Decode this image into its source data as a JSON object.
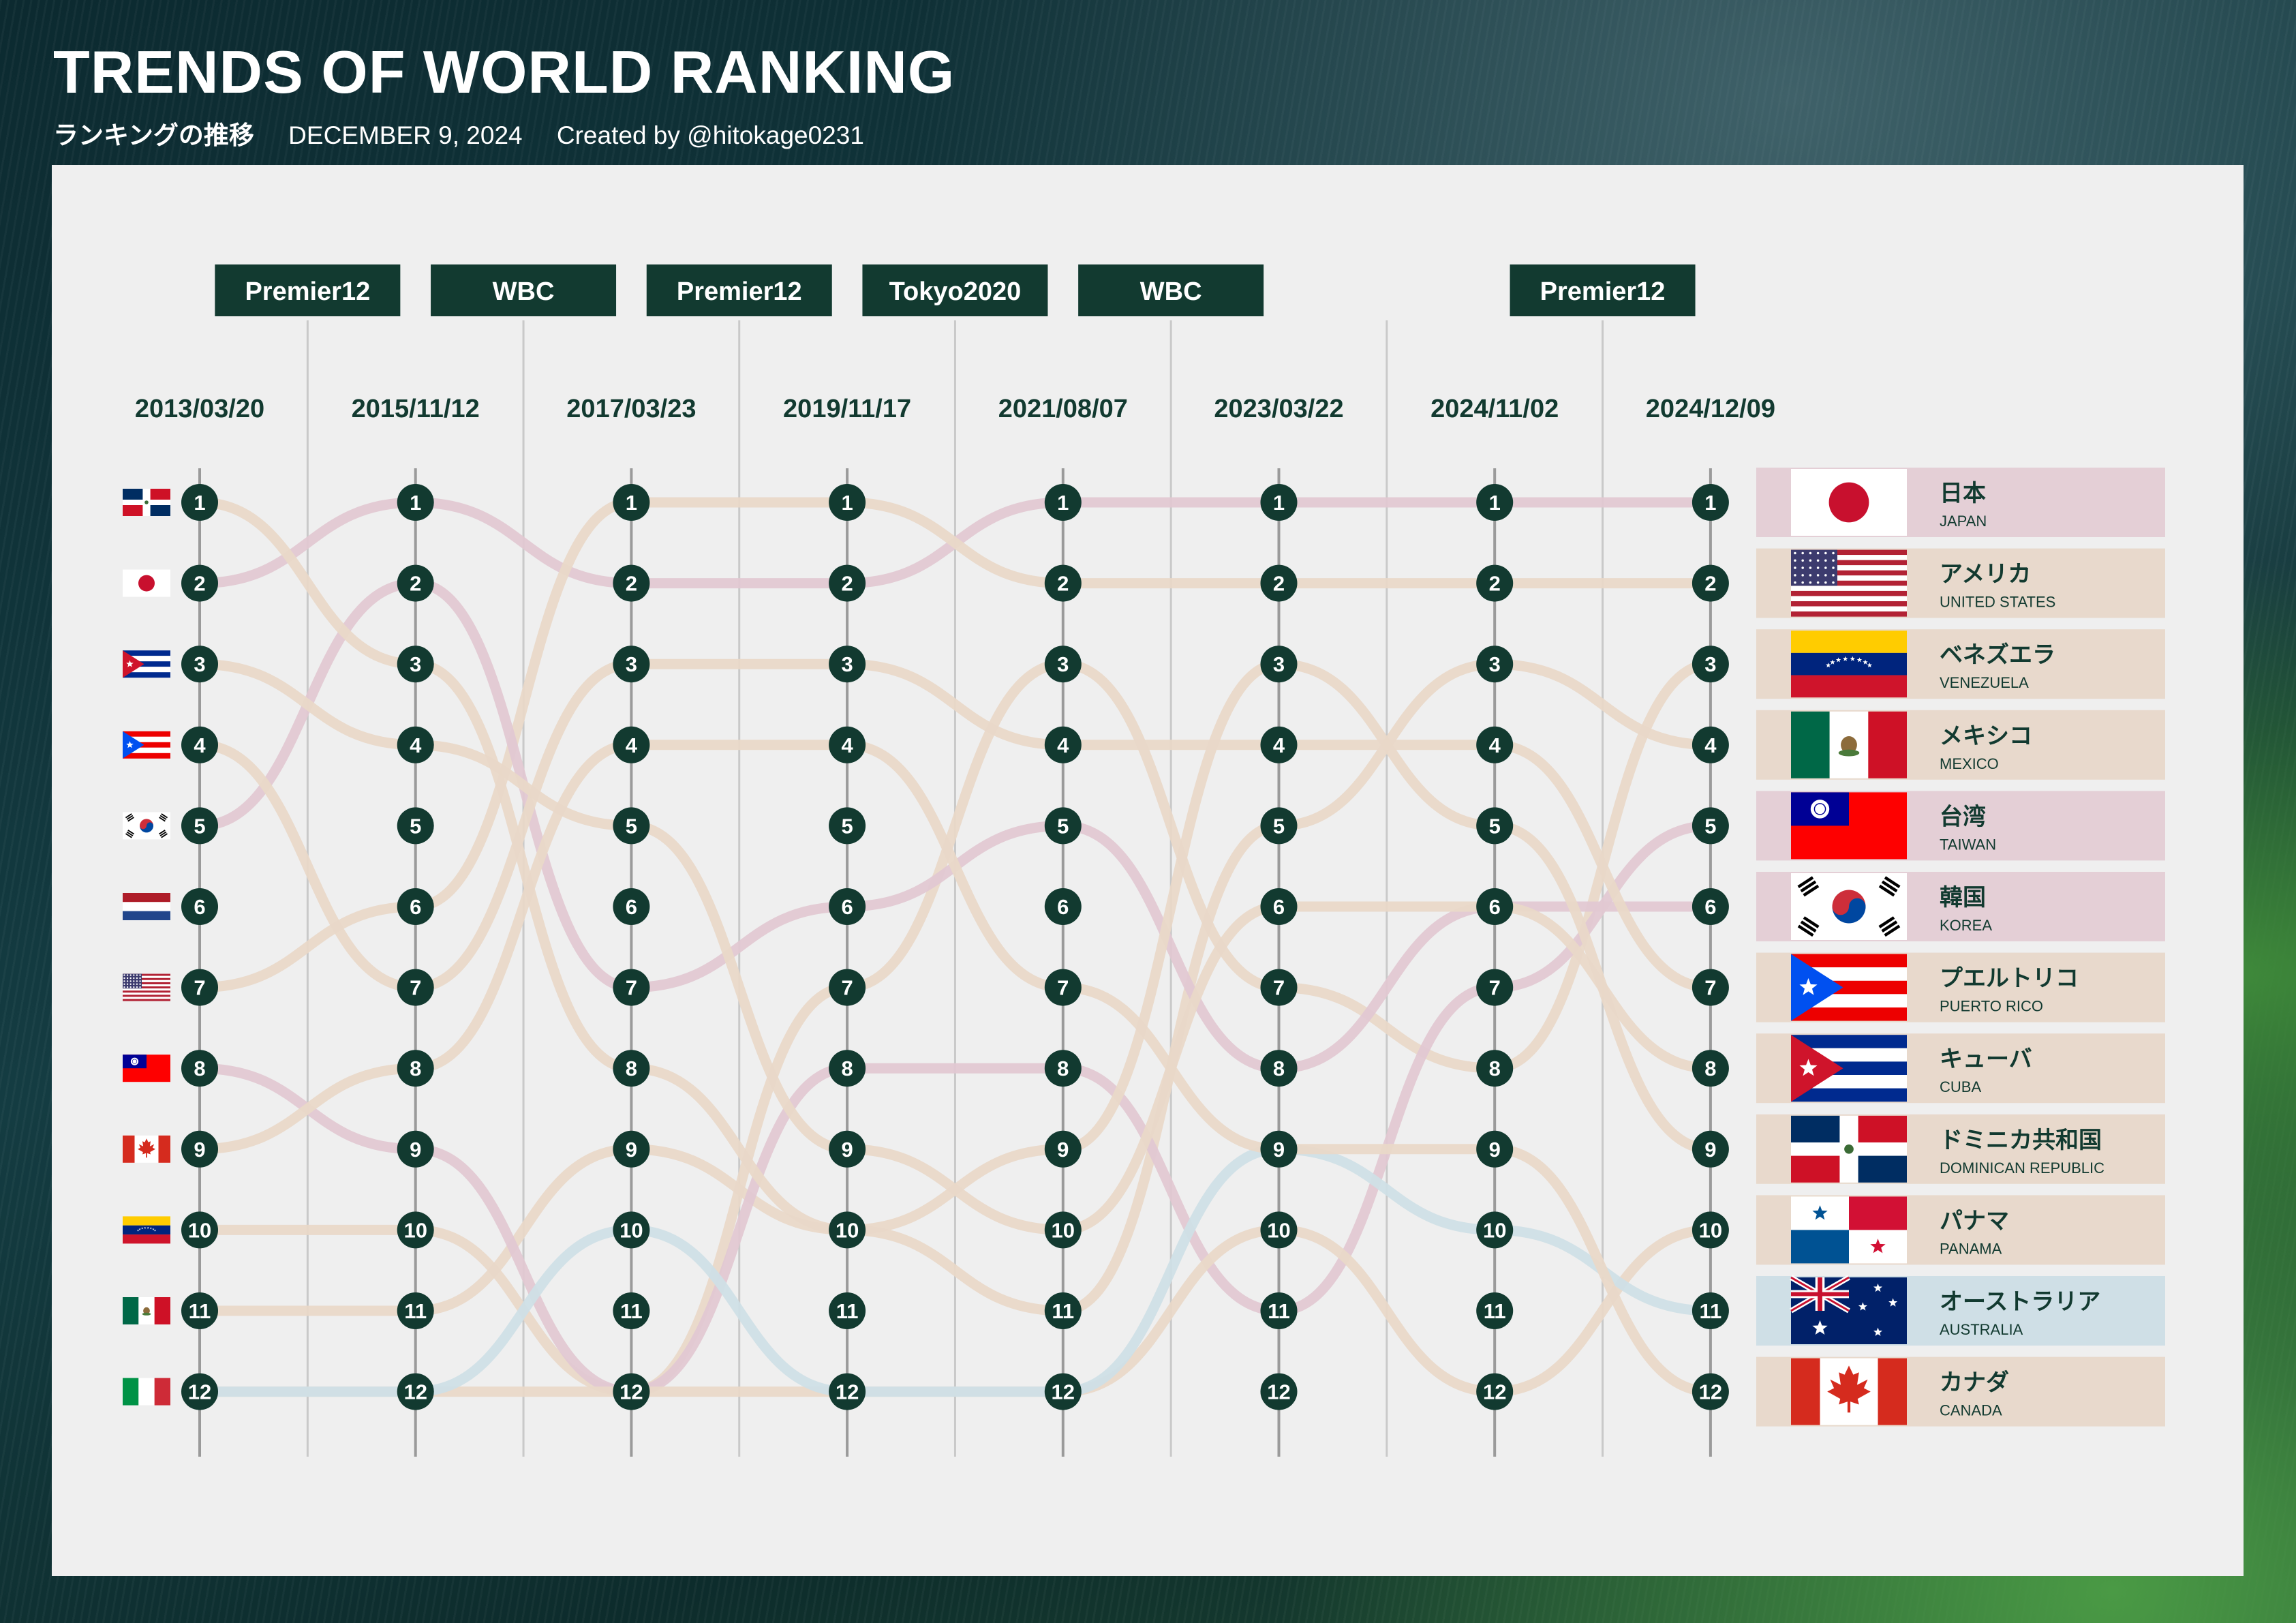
{
  "header": {
    "title": "TRENDS OF WORLD RANKING",
    "subtitle_jp": "ランキングの推移",
    "date": "DECEMBER 9, 2024",
    "credit": "Created by @hitokage0231"
  },
  "colors": {
    "panel_bg": "#efefef",
    "dark_green": "#123a30",
    "pink_line": "#e2c8d2",
    "tan_line": "#e9d8c8",
    "blue_line": "#cfdfe6",
    "pink_card": "#e4cfd6",
    "tan_card": "#e8d9cc",
    "blue_card": "#cfdfe6"
  },
  "chart_data": {
    "type": "bump",
    "x": [
      "2013/03/20",
      "2015/11/12",
      "2017/03/23",
      "2019/11/17",
      "2021/08/07",
      "2023/03/22",
      "2024/11/02",
      "2024/12/09"
    ],
    "ranks": [
      1,
      2,
      3,
      4,
      5,
      6,
      7,
      8,
      9,
      10,
      11,
      12
    ],
    "events": [
      {
        "label": "Premier12",
        "after_date": "2015/11/12"
      },
      {
        "label": "WBC",
        "after_date": "2017/03/23"
      },
      {
        "label": "Premier12",
        "after_date": "2019/11/17"
      },
      {
        "label": "Tokyo2020",
        "after_date": "2021/08/07"
      },
      {
        "label": "WBC",
        "after_date": "2023/03/22"
      },
      {
        "label": "Premier12",
        "after_date": "2024/12/09"
      }
    ],
    "initial_order": [
      "dominican",
      "japan",
      "cuba",
      "puerto_rico",
      "korea",
      "netherlands",
      "usa",
      "taiwan",
      "canada",
      "venezuela",
      "mexico",
      "italy"
    ],
    "series": [
      {
        "id": "japan",
        "name": "日本",
        "name_en": "JAPAN",
        "color": "pink",
        "ranks": [
          2,
          1,
          2,
          2,
          1,
          1,
          1,
          1
        ]
      },
      {
        "id": "usa",
        "name": "アメリカ",
        "name_en": "UNITED STATES",
        "color": "tan",
        "ranks": [
          7,
          6,
          1,
          1,
          2,
          2,
          2,
          2
        ]
      },
      {
        "id": "venezuela",
        "name": "ベネズエラ",
        "name_en": "VENEZUELA",
        "color": "tan",
        "ranks": [
          10,
          10,
          12,
          7,
          3,
          7,
          8,
          3
        ]
      },
      {
        "id": "mexico",
        "name": "メキシコ",
        "name_en": "MEXICO",
        "color": "tan",
        "ranks": [
          11,
          11,
          9,
          10,
          11,
          5,
          3,
          4
        ]
      },
      {
        "id": "taiwan",
        "name": "台湾",
        "name_en": "TAIWAN",
        "color": "pink",
        "ranks": [
          8,
          9,
          12,
          8,
          8,
          11,
          7,
          5
        ]
      },
      {
        "id": "korea",
        "name": "韓国",
        "name_en": "KOREA",
        "color": "pink",
        "ranks": [
          5,
          2,
          7,
          6,
          5,
          8,
          6,
          6
        ]
      },
      {
        "id": "puerto_rico",
        "name": "プエルトリコ",
        "name_en": "PUERTO RICO",
        "color": "tan",
        "ranks": [
          4,
          7,
          3,
          3,
          4,
          4,
          4,
          7
        ]
      },
      {
        "id": "cuba",
        "name": "キューバ",
        "name_en": "CUBA",
        "color": "tan",
        "ranks": [
          3,
          4,
          5,
          9,
          10,
          6,
          6,
          8
        ]
      },
      {
        "id": "dominican",
        "name": "ドミニカ共和国",
        "name_en": "DOMINICAN REPUBLIC",
        "color": "tan",
        "ranks": [
          1,
          3,
          8,
          10,
          9,
          3,
          5,
          9
        ]
      },
      {
        "id": "panama",
        "name": "パナマ",
        "name_en": "PANAMA",
        "color": "tan",
        "ranks": [
          12,
          12,
          12,
          12,
          12,
          10,
          12,
          10
        ]
      },
      {
        "id": "australia",
        "name": "オーストラリア",
        "name_en": "AUSTRALIA",
        "color": "blue",
        "ranks": [
          12,
          12,
          10,
          12,
          12,
          9,
          10,
          11
        ]
      },
      {
        "id": "canada",
        "name": "カナダ",
        "name_en": "CANADA",
        "color": "tan",
        "ranks": [
          9,
          8,
          4,
          4,
          7,
          9,
          9,
          12
        ]
      }
    ]
  }
}
